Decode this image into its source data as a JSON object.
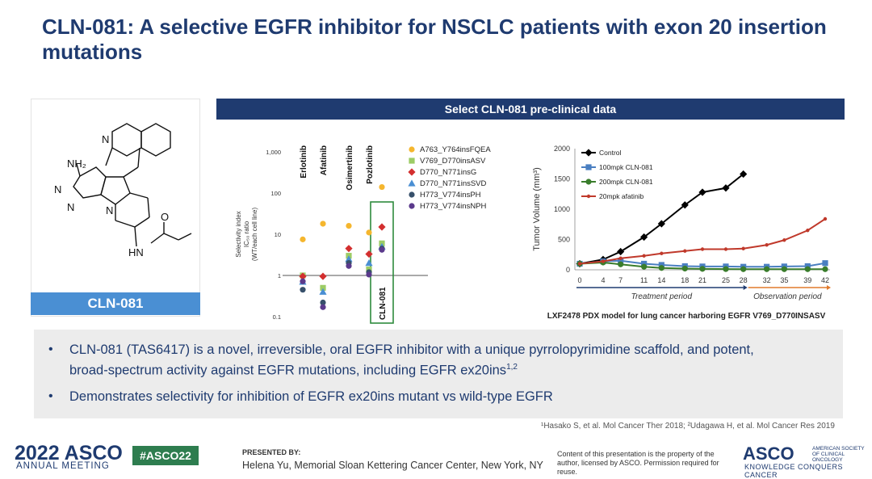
{
  "title": "CLN-081: A selective EGFR inhibitor for NSCLC patients with exon 20 insertion mutations",
  "structure": {
    "label": "CLN-081",
    "atoms": {
      "n1": "N",
      "n_pyr1": "N",
      "n_pyr2": "N",
      "n_ring": "N",
      "nh2": "NH₂",
      "hn": "HN",
      "o": "O"
    }
  },
  "banner": "Select CLN-081 pre-clinical data",
  "chart_data": [
    {
      "type": "scatter",
      "ylabel_lines": [
        "Selectivity index",
        "IC₅₀ ratio",
        "(WT/each cell line)"
      ],
      "yscale": "log",
      "ylim": [
        0.1,
        1000
      ],
      "yticks": [
        1000,
        100,
        10,
        1,
        0.1
      ],
      "ytick_labels": [
        "1,000",
        "100",
        "10",
        "1",
        "0.1"
      ],
      "categories": [
        "Erlotinib",
        "Afatinib",
        "Osimertinib",
        "Pozlotinib",
        "CLN-081"
      ],
      "series": [
        {
          "name": "A763_Y764insFQEA",
          "color": "#f5b62e",
          "marker": "circle",
          "values": [
            7.5,
            18,
            16,
            11,
            140
          ]
        },
        {
          "name": "V769_D770insASV",
          "color": "#9ccc65",
          "marker": "square",
          "values": [
            1.0,
            0.5,
            3.0,
            1.4,
            6.0
          ]
        },
        {
          "name": "D770_N771insG",
          "color": "#d32f2f",
          "marker": "diamond",
          "values": [
            0.95,
            0.95,
            4.5,
            3.3,
            15
          ]
        },
        {
          "name": "D770_N771insSVD",
          "color": "#4a8fd3",
          "marker": "triangle",
          "values": [
            0.7,
            0.4,
            2.5,
            2.0,
            5.0
          ]
        },
        {
          "name": "H773_V774insPH",
          "color": "#37506b",
          "marker": "circle",
          "values": [
            0.45,
            0.22,
            2.0,
            1.2,
            4.5
          ]
        },
        {
          "name": "H773_V774insNPH",
          "color": "#5b3a8c",
          "marker": "circle",
          "values": [
            0.72,
            0.17,
            1.7,
            1.05,
            4.2
          ]
        }
      ]
    },
    {
      "type": "line",
      "ylabel": "Tumor Volume (mm³)",
      "ylim": [
        0,
        2000
      ],
      "yticks": [
        0,
        500,
        1000,
        1500,
        2000
      ],
      "x": [
        0,
        4,
        7,
        11,
        14,
        18,
        21,
        25,
        28,
        32,
        35,
        39,
        42
      ],
      "xlim": [
        0,
        42
      ],
      "treatment_label": "Treatment period",
      "observation_label": "Observation period",
      "series": [
        {
          "name": "Control",
          "color": "#000000",
          "marker": "diamond",
          "values": [
            100,
            170,
            300,
            540,
            760,
            1070,
            1280,
            1350,
            1580,
            null,
            null,
            null,
            null
          ]
        },
        {
          "name": "100mpk CLN-081",
          "color": "#4a7fc1",
          "marker": "square",
          "values": [
            100,
            140,
            150,
            100,
            80,
            60,
            55,
            55,
            50,
            50,
            55,
            60,
            110
          ]
        },
        {
          "name": "200mpk CLN-081",
          "color": "#3a7d2c",
          "marker": "circle",
          "values": [
            100,
            120,
            90,
            50,
            30,
            20,
            15,
            12,
            10,
            10,
            10,
            10,
            10
          ]
        },
        {
          "name": "20mpk afatinib",
          "color": "#c0392b",
          "marker": "dot",
          "values": [
            100,
            140,
            190,
            230,
            270,
            310,
            340,
            340,
            350,
            410,
            490,
            650,
            840
          ]
        }
      ],
      "caption": "LXF2478 PDX model for lung cancer harboring EGFR V769_D770INSASV"
    }
  ],
  "bullets": {
    "b1_main": "CLN-081 (TAS6417) is a novel, irreversible, oral EGFR inhibitor with a unique pyrrolopyrimidine scaffold, and potent,",
    "b1_cont": "broad-spectrum activity against EGFR mutations, including EGFR ex20ins",
    "b1_sup": "1,2",
    "b2": "Demonstrates selectivity for inhibition of EGFR ex20ins mutant vs wild-type EGFR",
    "marker": "•"
  },
  "footnote": "¹Hasako S, et al. Mol Cancer Ther 2018; ²Udagawa H, et al. Mol Cancer Res 2019",
  "footer": {
    "year": "2022 ASCO",
    "annual": "ANNUAL MEETING",
    "hashtag": "#ASCO22",
    "presented_by": "PRESENTED BY:",
    "presenter": "Helena Yu, Memorial Sloan Kettering Cancer Center, New York, NY",
    "disclaimer": "Content of this presentation is the property of the author, licensed by ASCO. Permission required for reuse.",
    "asco": "ASCO",
    "asco_small": "AMERICAN SOCIETY OF CLINICAL ONCOLOGY",
    "tagline": "KNOWLEDGE CONQUERS CANCER"
  },
  "colors": {
    "navy": "#1f3b70",
    "blue": "#4a8fd3",
    "green": "#2e7d4f"
  }
}
